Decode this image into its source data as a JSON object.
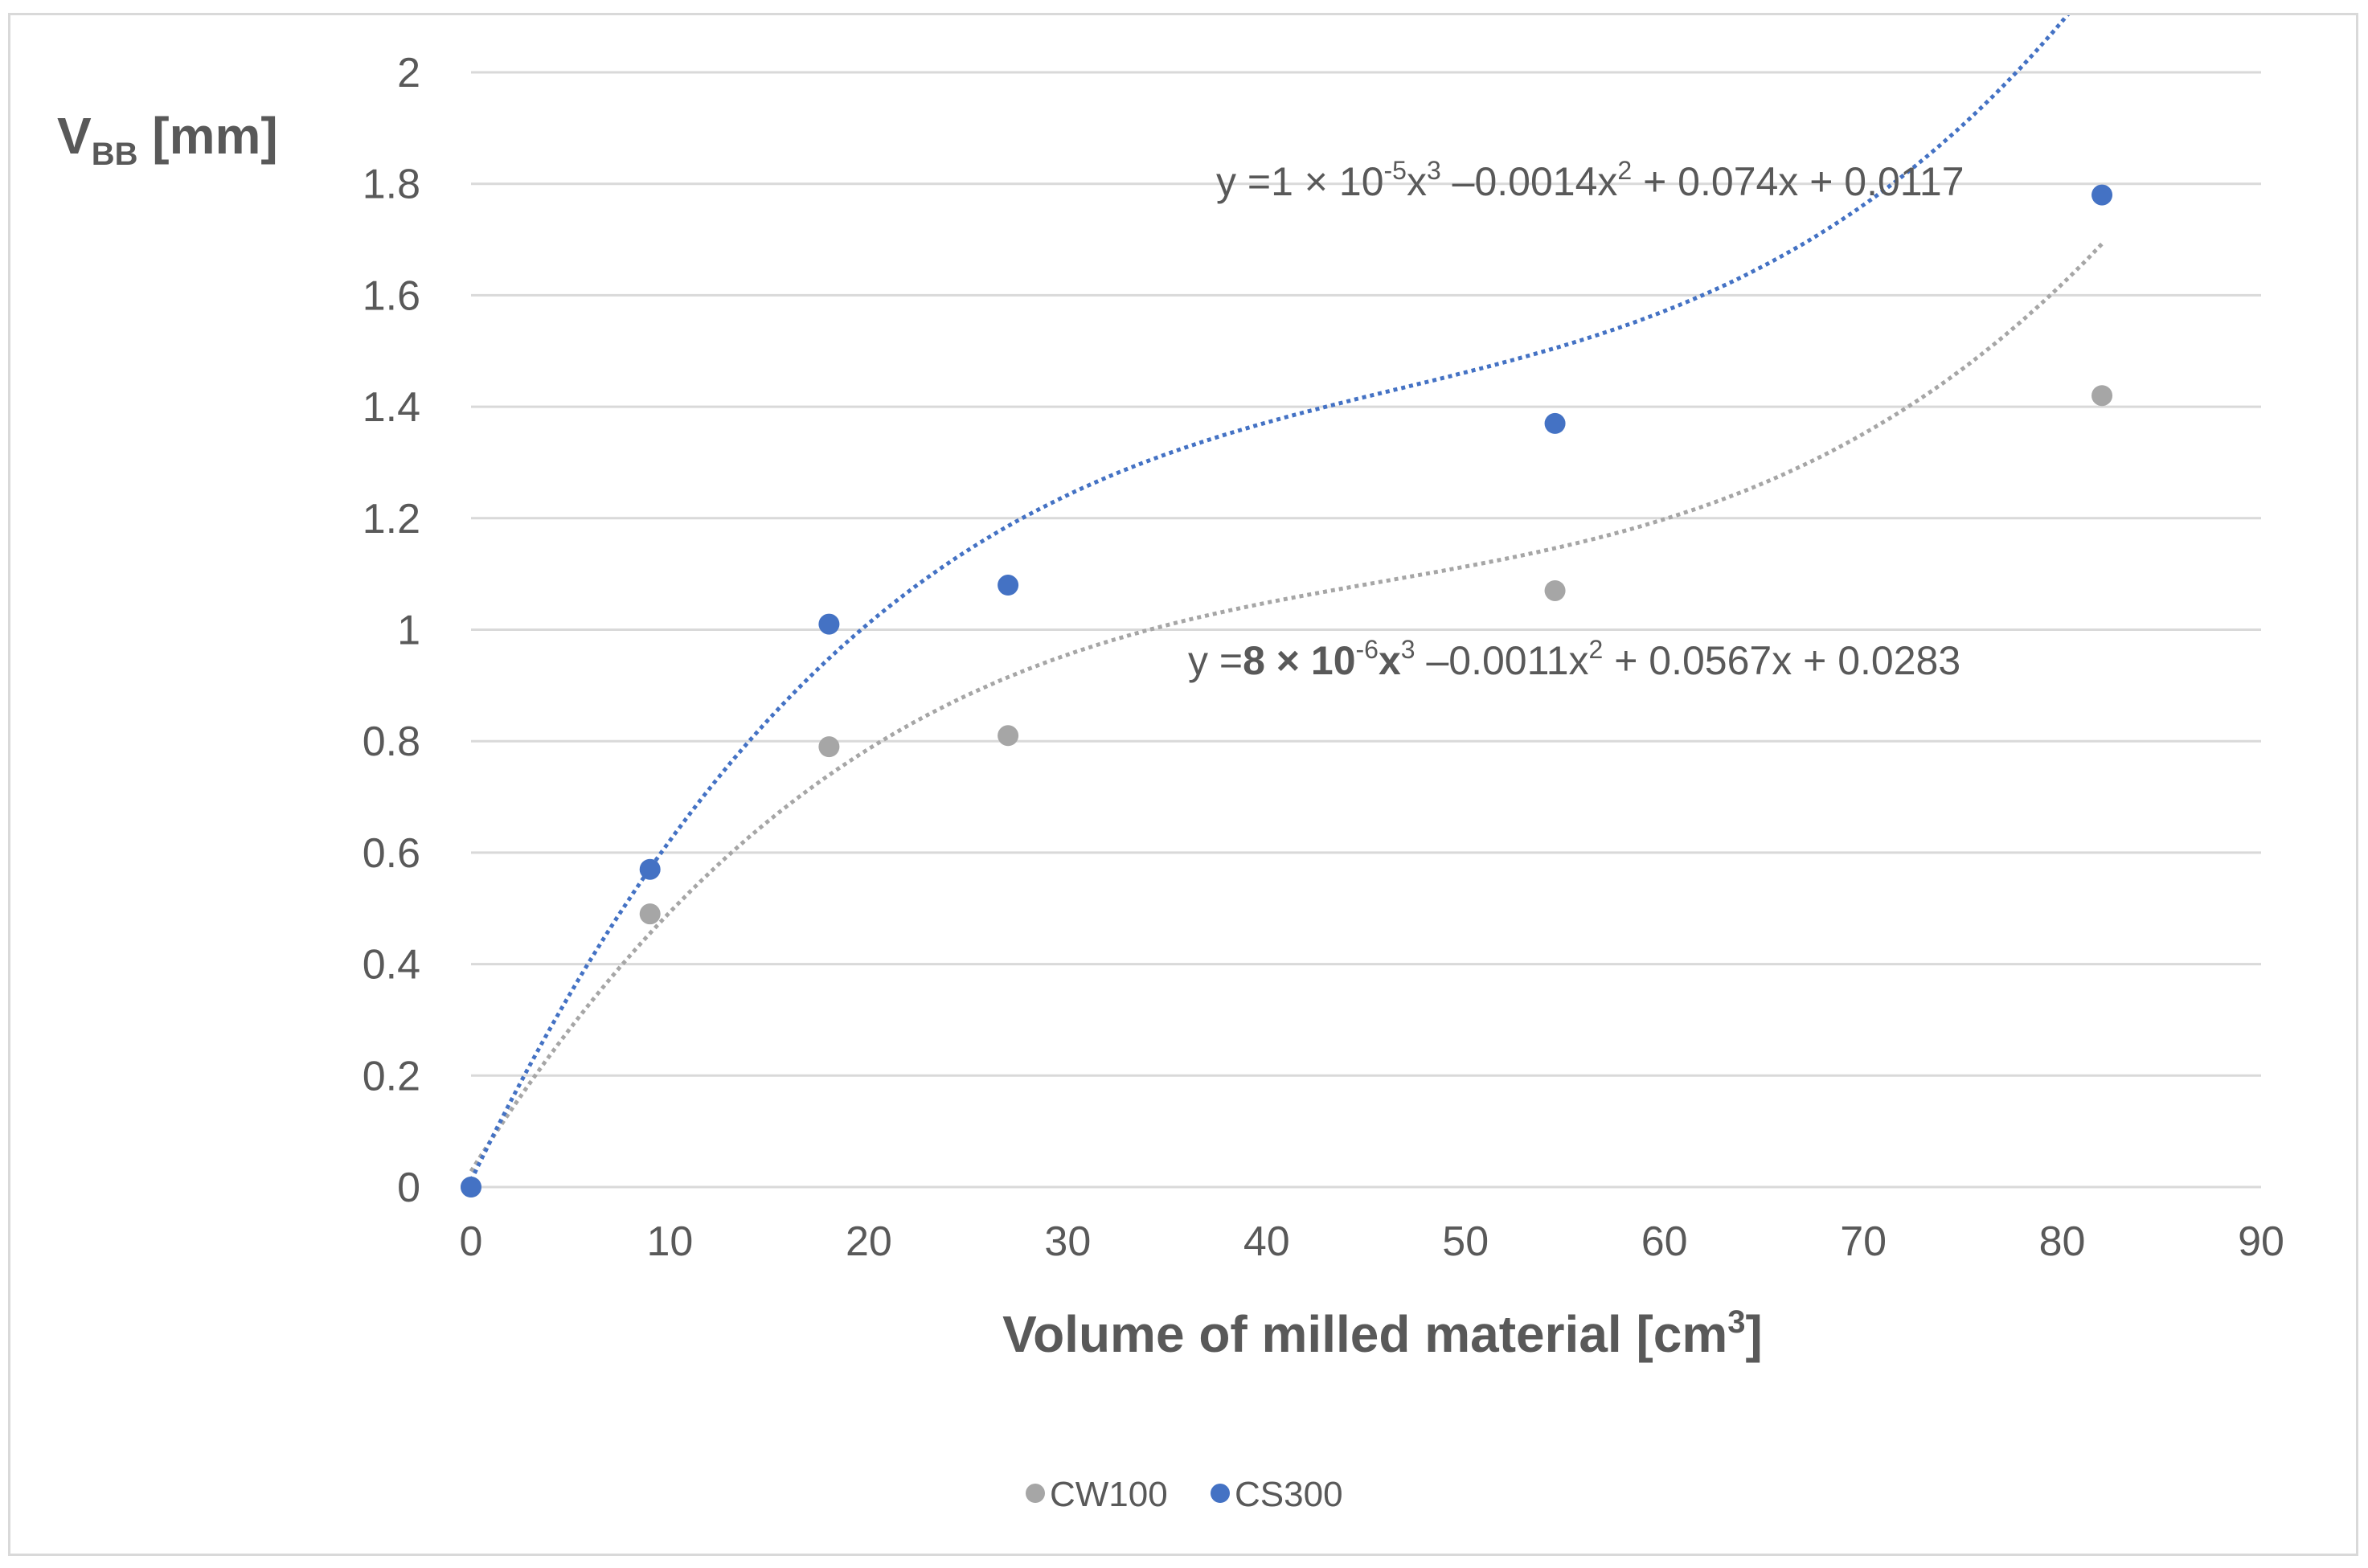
{
  "chart_data": {
    "type": "scatter",
    "title": "",
    "xlabel": "Volume of milled material [cm",
    "xlabel_sup": "3",
    "xlabel_end": "]",
    "ylabel_main": "V",
    "ylabel_sub": "BB",
    "ylabel_end": " [mm]",
    "xlim": [
      0,
      90
    ],
    "ylim": [
      0,
      2
    ],
    "xticks": [
      "0",
      "10",
      "20",
      "30",
      "40",
      "50",
      "60",
      "70",
      "80",
      "90"
    ],
    "yticks": [
      "0",
      "0.2",
      "0.4",
      "0.6",
      "0.8",
      "1",
      "1.2",
      "1.4",
      "1.6",
      "1.8",
      "2"
    ],
    "grid": true,
    "legend_position": "bottom",
    "series": [
      {
        "name": "CW100",
        "color": "#a6a6a6",
        "x": [
          0,
          9,
          18,
          27,
          54.5,
          82
        ],
        "y": [
          0,
          0.49,
          0.79,
          0.81,
          1.07,
          1.42
        ],
        "trendline": {
          "type": "polynomial-3",
          "coefficients": [
            8e-06,
            -0.0011,
            0.0567,
            0.0283
          ],
          "equation_parts": [
            "y =",
            "8",
            " × 10",
            "-6",
            "x",
            "3",
            " –0.0011x",
            "2",
            " + 0.0567x  + 0.0283"
          ]
        }
      },
      {
        "name": "CS300",
        "color": "#4472c4",
        "x": [
          0,
          9,
          18,
          27,
          54.5,
          82
        ],
        "y": [
          0,
          0.57,
          1.01,
          1.08,
          1.37,
          1.78
        ],
        "trendline": {
          "type": "polynomial-3",
          "coefficients": [
            1e-05,
            -0.0014,
            0.074,
            0.0117
          ],
          "equation_parts": [
            "y =",
            "1",
            " × 10",
            "-5",
            "x",
            "3",
            " –0.0014x",
            "2",
            " + 0.074x + 0.0117"
          ]
        }
      }
    ]
  }
}
